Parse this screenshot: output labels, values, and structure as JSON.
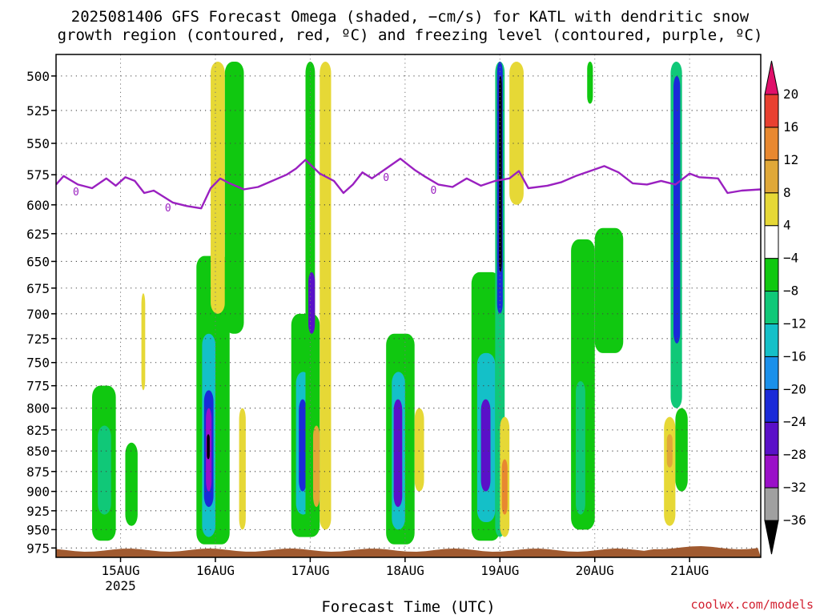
{
  "title_line1": "2025081406 GFS Forecast Omega (shaded, −cm/s) for KATL with dendritic snow",
  "title_line2": "growth region (contoured, red, ºC) and freezing level (contoured, purple, ºC)",
  "xlabel": "Forecast Time (UTC)",
  "credit": "coolwx.com/models",
  "chart_data": {
    "type": "heatmap",
    "x_tick_labels": [
      "15AUG",
      "16AUG",
      "17AUG",
      "18AUG",
      "19AUG",
      "20AUG",
      "21AUG"
    ],
    "x_year_label": "2025",
    "x_days": [
      1,
      2,
      3,
      4,
      5,
      6,
      7
    ],
    "xlim": [
      0.32,
      7.75
    ],
    "y_levels": [
      500,
      525,
      550,
      575,
      600,
      625,
      650,
      675,
      700,
      725,
      750,
      775,
      800,
      825,
      850,
      875,
      900,
      925,
      950,
      975
    ],
    "ylim": [
      988,
      485
    ],
    "y_scale": "log",
    "colorbar": {
      "bounds": [
        -36,
        -32,
        -28,
        -24,
        -20,
        -16,
        -12,
        -8,
        -4,
        4,
        8,
        12,
        16,
        20
      ],
      "labels": [
        "20",
        "16",
        "12",
        "8",
        "4",
        "−4",
        "−8",
        "−12",
        "−16",
        "−20",
        "−24",
        "−28",
        "−32",
        "−36"
      ],
      "colors": [
        "#a0a0a0",
        "#9a10c8",
        "#5a10c8",
        "#1a2ad8",
        "#1a90ea",
        "#14c0c8",
        "#10c878",
        "#10c810",
        "#ffffff",
        "#e6d836",
        "#e0a838",
        "#e88830",
        "#e84030"
      ],
      "under_color": "#000000",
      "over_color": "#e0106a"
    },
    "freezing_level": {
      "color": "#9a20c0",
      "label": "0",
      "label_positions": [
        [
          0.53,
          0.5
        ],
        [
          1.5,
          0.5
        ],
        [
          3.8,
          0.5
        ],
        [
          4.3,
          0.5
        ]
      ],
      "points": [
        [
          0.32,
          583
        ],
        [
          0.4,
          576
        ],
        [
          0.55,
          583
        ],
        [
          0.7,
          586
        ],
        [
          0.85,
          578
        ],
        [
          0.95,
          584
        ],
        [
          1.05,
          577
        ],
        [
          1.15,
          580
        ],
        [
          1.25,
          590
        ],
        [
          1.35,
          588
        ],
        [
          1.45,
          593
        ],
        [
          1.55,
          598
        ],
        [
          1.7,
          601
        ],
        [
          1.85,
          603
        ],
        [
          1.95,
          586
        ],
        [
          2.05,
          578
        ],
        [
          2.15,
          582
        ],
        [
          2.3,
          587
        ],
        [
          2.45,
          585
        ],
        [
          2.6,
          580
        ],
        [
          2.75,
          575
        ],
        [
          2.85,
          570
        ],
        [
          2.95,
          563
        ],
        [
          3.1,
          574
        ],
        [
          3.25,
          580
        ],
        [
          3.35,
          590
        ],
        [
          3.45,
          583
        ],
        [
          3.55,
          573
        ],
        [
          3.65,
          578
        ],
        [
          3.8,
          570
        ],
        [
          3.95,
          562
        ],
        [
          4.1,
          571
        ],
        [
          4.2,
          576
        ],
        [
          4.35,
          583
        ],
        [
          4.5,
          585
        ],
        [
          4.65,
          578
        ],
        [
          4.8,
          584
        ],
        [
          4.95,
          580
        ],
        [
          5.1,
          578
        ],
        [
          5.2,
          572
        ],
        [
          5.3,
          586
        ],
        [
          5.5,
          584
        ],
        [
          5.65,
          581
        ],
        [
          5.8,
          576
        ],
        [
          5.95,
          572
        ],
        [
          6.1,
          568
        ],
        [
          6.25,
          573
        ],
        [
          6.4,
          582
        ],
        [
          6.55,
          583
        ],
        [
          6.7,
          580
        ],
        [
          6.85,
          583
        ],
        [
          7.0,
          574
        ],
        [
          7.1,
          577
        ],
        [
          7.3,
          578
        ],
        [
          7.4,
          590
        ],
        [
          7.55,
          588
        ],
        [
          7.75,
          587
        ]
      ]
    },
    "shaded_cells": [
      {
        "x": [
          0.7,
          0.95
        ],
        "p": [
          775,
          965
        ],
        "v": -8
      },
      {
        "x": [
          0.76,
          0.9
        ],
        "p": [
          820,
          930
        ],
        "v": -12
      },
      {
        "x": [
          1.05,
          1.18
        ],
        "p": [
          840,
          945
        ],
        "v": -6
      },
      {
        "x": [
          1.22,
          1.26
        ],
        "p": [
          680,
          780
        ],
        "v": 5
      },
      {
        "x": [
          1.8,
          2.15
        ],
        "p": [
          645,
          970
        ],
        "v": -8
      },
      {
        "x": [
          1.86,
          2.0
        ],
        "p": [
          720,
          960
        ],
        "v": -14
      },
      {
        "x": [
          1.88,
          1.98
        ],
        "p": [
          780,
          920
        ],
        "v": -22
      },
      {
        "x": [
          1.9,
          1.96
        ],
        "p": [
          800,
          900
        ],
        "v": -30
      },
      {
        "x": [
          1.91,
          1.94
        ],
        "p": [
          830,
          860
        ],
        "v": -38
      },
      {
        "x": [
          1.95,
          2.1
        ],
        "p": [
          490,
          700
        ],
        "v": 5
      },
      {
        "x": [
          2.1,
          2.3
        ],
        "p": [
          490,
          720
        ],
        "v": -6
      },
      {
        "x": [
          2.25,
          2.32
        ],
        "p": [
          800,
          950
        ],
        "v": 5
      },
      {
        "x": [
          2.8,
          3.1
        ],
        "p": [
          700,
          960
        ],
        "v": -8
      },
      {
        "x": [
          2.85,
          3.0
        ],
        "p": [
          760,
          930
        ],
        "v": -16
      },
      {
        "x": [
          2.88,
          2.96
        ],
        "p": [
          790,
          900
        ],
        "v": -24
      },
      {
        "x": [
          2.95,
          3.05
        ],
        "p": [
          490,
          950
        ],
        "v": -6
      },
      {
        "x": [
          2.98,
          3.05
        ],
        "p": [
          660,
          720
        ],
        "v": -26
      },
      {
        "x": [
          3.03,
          3.1
        ],
        "p": [
          820,
          920
        ],
        "v": 9
      },
      {
        "x": [
          3.1,
          3.22
        ],
        "p": [
          490,
          950
        ],
        "v": 5
      },
      {
        "x": [
          3.8,
          4.1
        ],
        "p": [
          720,
          970
        ],
        "v": -8
      },
      {
        "x": [
          3.86,
          4.0
        ],
        "p": [
          760,
          950
        ],
        "v": -16
      },
      {
        "x": [
          3.88,
          3.97
        ],
        "p": [
          790,
          920
        ],
        "v": -26
      },
      {
        "x": [
          4.1,
          4.2
        ],
        "p": [
          800,
          900
        ],
        "v": 5
      },
      {
        "x": [
          4.7,
          5.0
        ],
        "p": [
          660,
          965
        ],
        "v": -8
      },
      {
        "x": [
          4.76,
          4.95
        ],
        "p": [
          740,
          940
        ],
        "v": -16
      },
      {
        "x": [
          4.8,
          4.9
        ],
        "p": [
          790,
          900
        ],
        "v": -28
      },
      {
        "x": [
          4.95,
          5.05
        ],
        "p": [
          490,
          960
        ],
        "v": -10
      },
      {
        "x": [
          4.97,
          5.03
        ],
        "p": [
          490,
          700
        ],
        "v": -24
      },
      {
        "x": [
          4.99,
          5.02
        ],
        "p": [
          500,
          660
        ],
        "v": -38
      },
      {
        "x": [
          5.0,
          5.1
        ],
        "p": [
          810,
          960
        ],
        "v": 7
      },
      {
        "x": [
          5.02,
          5.08
        ],
        "p": [
          860,
          930
        ],
        "v": 14
      },
      {
        "x": [
          5.1,
          5.25
        ],
        "p": [
          490,
          600
        ],
        "v": 5
      },
      {
        "x": [
          5.75,
          6.0
        ],
        "p": [
          630,
          950
        ],
        "v": -8
      },
      {
        "x": [
          5.8,
          5.9
        ],
        "p": [
          770,
          930
        ],
        "v": -12
      },
      {
        "x": [
          6.0,
          6.3
        ],
        "p": [
          620,
          740
        ],
        "v": -6
      },
      {
        "x": [
          5.92,
          5.98
        ],
        "p": [
          490,
          520
        ],
        "v": -6
      },
      {
        "x": [
          6.8,
          6.92
        ],
        "p": [
          490,
          800
        ],
        "v": -10
      },
      {
        "x": [
          6.83,
          6.9
        ],
        "p": [
          500,
          730
        ],
        "v": -22
      },
      {
        "x": [
          6.73,
          6.85
        ],
        "p": [
          810,
          945
        ],
        "v": 5
      },
      {
        "x": [
          6.76,
          6.82
        ],
        "p": [
          830,
          870
        ],
        "v": 10
      },
      {
        "x": [
          6.85,
          6.98
        ],
        "p": [
          800,
          900
        ],
        "v": -6
      }
    ],
    "terrain": {
      "color": "#a05a30",
      "label": "surface"
    }
  }
}
